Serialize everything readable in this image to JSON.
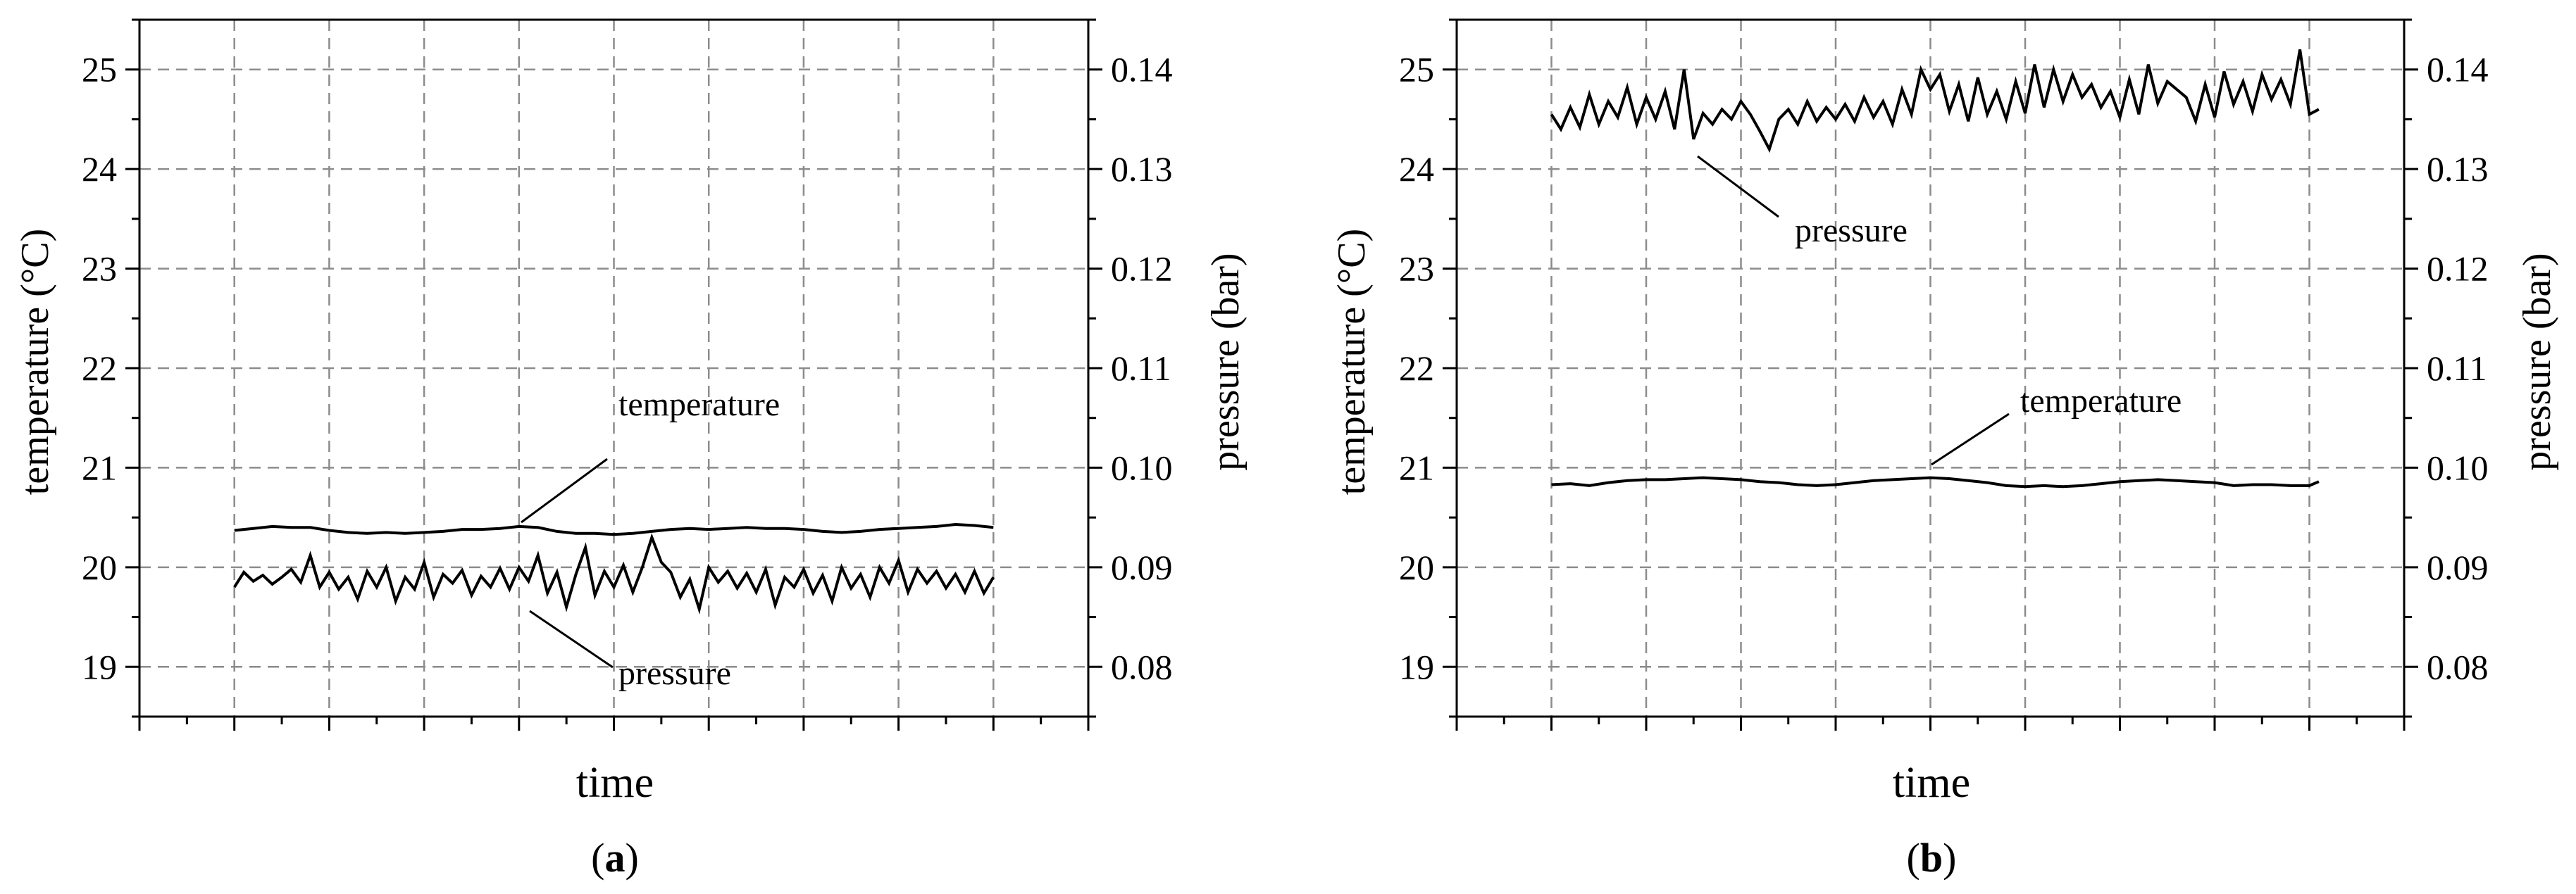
{
  "chart_data": [
    {
      "type": "line",
      "panel_label": {
        "open": "(",
        "letter": "a",
        "close": ")"
      },
      "xlabel": "time",
      "ylabel": "temperature (°C)",
      "y2label": "pressure (bar)",
      "x_ticks_labeled": false,
      "xlim": [
        -1,
        9
      ],
      "ylim": [
        18.5,
        25.5
      ],
      "y2lim": [
        0.075,
        0.145
      ],
      "yticks": [
        "19",
        "20",
        "21",
        "22",
        "23",
        "24",
        "25"
      ],
      "y2ticks": [
        "0.08",
        "0.09",
        "0.10",
        "0.11",
        "0.12",
        "0.13",
        "0.14"
      ],
      "grid": true,
      "series": [
        {
          "name": "temperature",
          "axis": "left",
          "x": [
            0.0,
            0.2,
            0.4,
            0.6,
            0.8,
            1.0,
            1.2,
            1.4,
            1.6,
            1.8,
            2.0,
            2.2,
            2.4,
            2.6,
            2.8,
            3.0,
            3.2,
            3.4,
            3.6,
            3.8,
            4.0,
            4.2,
            4.4,
            4.6,
            4.8,
            5.0,
            5.2,
            5.4,
            5.6,
            5.8,
            6.0,
            6.2,
            6.4,
            6.6,
            6.8,
            7.0,
            7.2,
            7.4,
            7.6,
            7.8,
            8.0
          ],
          "values": [
            20.37,
            20.39,
            20.41,
            20.4,
            20.4,
            20.37,
            20.35,
            20.34,
            20.35,
            20.34,
            20.35,
            20.36,
            20.38,
            20.38,
            20.39,
            20.41,
            20.4,
            20.36,
            20.34,
            20.34,
            20.33,
            20.34,
            20.36,
            20.38,
            20.39,
            20.38,
            20.39,
            20.4,
            20.39,
            20.39,
            20.38,
            20.36,
            20.35,
            20.36,
            20.38,
            20.39,
            20.4,
            20.41,
            20.43,
            20.42,
            20.4
          ]
        },
        {
          "name": "pressure",
          "axis": "right",
          "x": [
            0.0,
            0.1,
            0.2,
            0.3,
            0.4,
            0.5,
            0.6,
            0.7,
            0.8,
            0.9,
            1.0,
            1.1,
            1.2,
            1.3,
            1.4,
            1.5,
            1.6,
            1.7,
            1.8,
            1.9,
            2.0,
            2.1,
            2.2,
            2.3,
            2.4,
            2.5,
            2.6,
            2.7,
            2.8,
            2.9,
            3.0,
            3.1,
            3.2,
            3.3,
            3.4,
            3.5,
            3.6,
            3.7,
            3.8,
            3.9,
            4.0,
            4.1,
            4.2,
            4.3,
            4.4,
            4.5,
            4.6,
            4.7,
            4.8,
            4.9,
            5.0,
            5.1,
            5.2,
            5.3,
            5.4,
            5.5,
            5.6,
            5.7,
            5.8,
            5.9,
            6.0,
            6.1,
            6.2,
            6.3,
            6.4,
            6.5,
            6.6,
            6.7,
            6.8,
            6.9,
            7.0,
            7.1,
            7.2,
            7.3,
            7.4,
            7.5,
            7.6,
            7.7,
            7.8,
            7.9,
            8.0
          ],
          "values": [
            0.088,
            0.0895,
            0.0886,
            0.0892,
            0.0883,
            0.089,
            0.0898,
            0.0885,
            0.0912,
            0.088,
            0.0895,
            0.0878,
            0.089,
            0.0868,
            0.0896,
            0.088,
            0.09,
            0.0866,
            0.089,
            0.0878,
            0.0905,
            0.087,
            0.0893,
            0.0884,
            0.0897,
            0.0872,
            0.0891,
            0.088,
            0.0899,
            0.0878,
            0.09,
            0.0886,
            0.0912,
            0.0874,
            0.0895,
            0.086,
            0.0893,
            0.092,
            0.0872,
            0.0896,
            0.088,
            0.0902,
            0.0875,
            0.09,
            0.093,
            0.0905,
            0.0895,
            0.087,
            0.0888,
            0.0858,
            0.09,
            0.0885,
            0.0896,
            0.0879,
            0.0894,
            0.0875,
            0.0898,
            0.0862,
            0.089,
            0.088,
            0.0898,
            0.0874,
            0.0892,
            0.0866,
            0.09,
            0.0879,
            0.0893,
            0.087,
            0.09,
            0.0884,
            0.0907,
            0.0875,
            0.0898,
            0.0884,
            0.0896,
            0.0879,
            0.0893,
            0.0875,
            0.0896,
            0.0874,
            0.089
          ]
        }
      ],
      "annotations": [
        {
          "text": "temperature",
          "series": "temperature"
        },
        {
          "text": "pressure",
          "series": "pressure"
        }
      ]
    },
    {
      "type": "line",
      "panel_label": {
        "open": "(",
        "letter": "b",
        "close": ")"
      },
      "xlabel": "time",
      "ylabel": "temperature (°C)",
      "y2label": "pressure (bar)",
      "x_ticks_labeled": false,
      "xlim": [
        -1,
        9
      ],
      "ylim": [
        18.5,
        25.5
      ],
      "y2lim": [
        0.075,
        0.145
      ],
      "yticks": [
        "19",
        "20",
        "21",
        "22",
        "23",
        "24",
        "25"
      ],
      "y2ticks": [
        "0.08",
        "0.09",
        "0.10",
        "0.11",
        "0.12",
        "0.13",
        "0.14"
      ],
      "grid": true,
      "series": [
        {
          "name": "temperature",
          "axis": "left",
          "x": [
            0.0,
            0.2,
            0.4,
            0.6,
            0.8,
            1.0,
            1.2,
            1.4,
            1.6,
            1.8,
            2.0,
            2.2,
            2.4,
            2.6,
            2.8,
            3.0,
            3.2,
            3.4,
            3.6,
            3.8,
            4.0,
            4.2,
            4.4,
            4.6,
            4.8,
            5.0,
            5.2,
            5.4,
            5.6,
            5.8,
            6.0,
            6.2,
            6.4,
            6.6,
            6.8,
            7.0,
            7.2,
            7.4,
            7.6,
            7.8,
            8.0,
            8.1
          ],
          "values": [
            20.83,
            20.84,
            20.82,
            20.85,
            20.87,
            20.88,
            20.88,
            20.89,
            20.9,
            20.89,
            20.88,
            20.86,
            20.85,
            20.83,
            20.82,
            20.83,
            20.85,
            20.87,
            20.88,
            20.89,
            20.9,
            20.89,
            20.87,
            20.85,
            20.82,
            20.81,
            20.82,
            20.81,
            20.82,
            20.84,
            20.86,
            20.87,
            20.88,
            20.87,
            20.86,
            20.85,
            20.82,
            20.83,
            20.83,
            20.82,
            20.82,
            20.86
          ]
        },
        {
          "name": "pressure",
          "axis": "right",
          "x": [
            0.0,
            0.1,
            0.2,
            0.3,
            0.4,
            0.5,
            0.6,
            0.7,
            0.8,
            0.9,
            1.0,
            1.1,
            1.2,
            1.3,
            1.4,
            1.5,
            1.6,
            1.7,
            1.8,
            1.9,
            2.0,
            2.1,
            2.2,
            2.3,
            2.4,
            2.5,
            2.6,
            2.7,
            2.8,
            2.9,
            3.0,
            3.1,
            3.2,
            3.3,
            3.4,
            3.5,
            3.6,
            3.7,
            3.8,
            3.9,
            4.0,
            4.1,
            4.2,
            4.3,
            4.4,
            4.5,
            4.6,
            4.7,
            4.8,
            4.9,
            5.0,
            5.1,
            5.2,
            5.3,
            5.4,
            5.5,
            5.6,
            5.7,
            5.8,
            5.9,
            6.0,
            6.1,
            6.2,
            6.3,
            6.4,
            6.5,
            6.6,
            6.7,
            6.8,
            6.9,
            7.0,
            7.1,
            7.2,
            7.3,
            7.4,
            7.5,
            7.6,
            7.7,
            7.8,
            7.9,
            8.0,
            8.1
          ],
          "values": [
            0.1355,
            0.134,
            0.1362,
            0.1342,
            0.1375,
            0.1345,
            0.1368,
            0.1352,
            0.1382,
            0.1345,
            0.1372,
            0.135,
            0.1378,
            0.134,
            0.14,
            0.133,
            0.1356,
            0.1345,
            0.136,
            0.135,
            0.1368,
            0.1355,
            0.1338,
            0.132,
            0.135,
            0.136,
            0.1345,
            0.1368,
            0.1348,
            0.1362,
            0.135,
            0.1365,
            0.1348,
            0.1372,
            0.1352,
            0.1368,
            0.1345,
            0.138,
            0.1355,
            0.14,
            0.138,
            0.1395,
            0.1358,
            0.1385,
            0.1348,
            0.1392,
            0.1355,
            0.1378,
            0.135,
            0.1388,
            0.1356,
            0.1405,
            0.1362,
            0.14,
            0.1368,
            0.1395,
            0.1372,
            0.1385,
            0.1362,
            0.1378,
            0.1352,
            0.139,
            0.1355,
            0.1405,
            0.1366,
            0.1388,
            0.138,
            0.1372,
            0.1348,
            0.1385,
            0.1352,
            0.1398,
            0.1365,
            0.1388,
            0.1358,
            0.1395,
            0.137,
            0.139,
            0.1365,
            0.142,
            0.1355,
            0.136
          ]
        }
      ],
      "annotations": [
        {
          "text": "pressure",
          "series": "pressure"
        },
        {
          "text": "temperature",
          "series": "temperature"
        }
      ]
    }
  ]
}
